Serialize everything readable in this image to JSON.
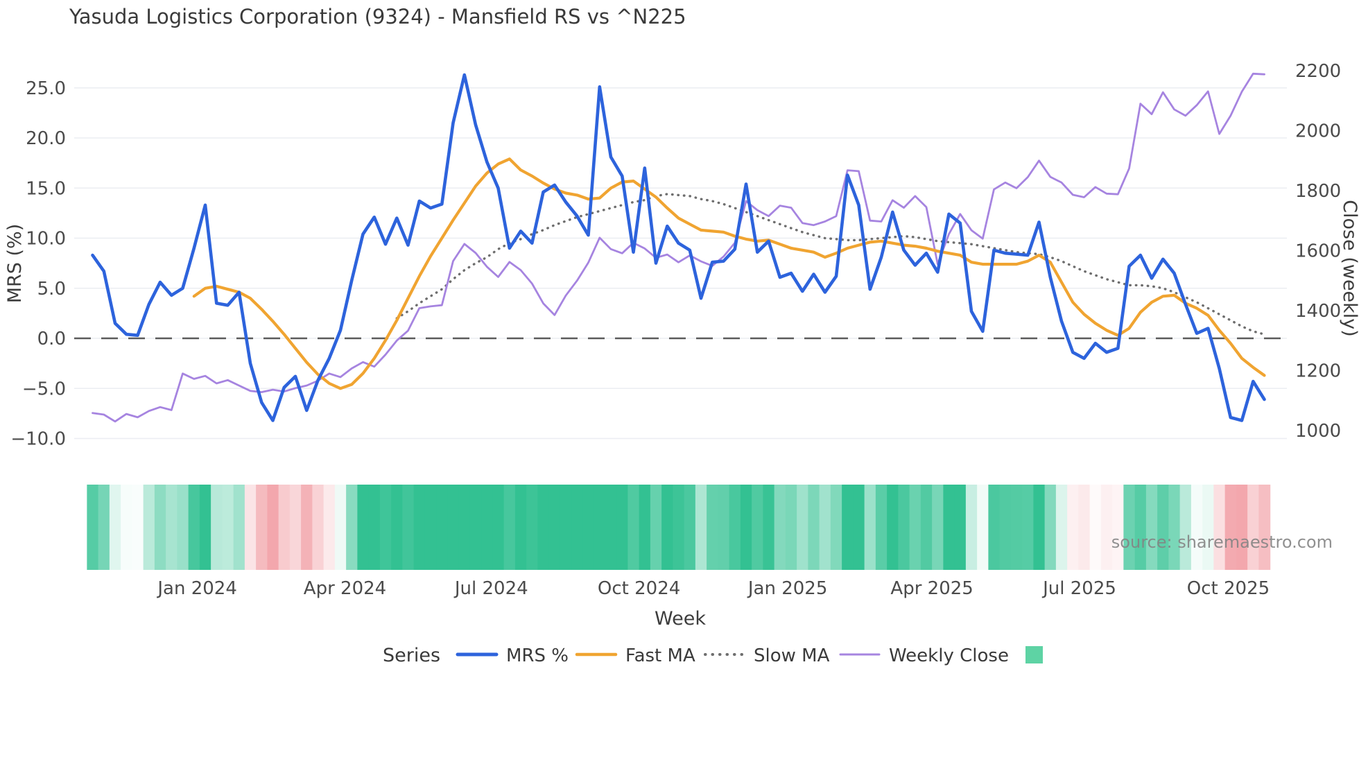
{
  "title": "Yasuda Logistics Corporation (9324) - Mansfield RS vs ^N225",
  "source": "source: sharemaestro.com",
  "axes": {
    "x": {
      "label": "Week",
      "ticks": [
        {
          "label": "Jan 2024",
          "week": 9.3
        },
        {
          "label": "Apr 2024",
          "week": 22.4
        },
        {
          "label": "Jul 2024",
          "week": 35.4
        },
        {
          "label": "Oct 2024",
          "week": 48.5
        },
        {
          "label": "Jan 2025",
          "week": 61.7
        },
        {
          "label": "Apr 2025",
          "week": 74.5
        },
        {
          "label": "Jul 2025",
          "week": 87.6
        },
        {
          "label": "Oct 2025",
          "week": 100.8
        }
      ]
    },
    "y_left": {
      "label": "MRS (%)",
      "ticks": [
        25,
        20,
        15,
        10,
        5,
        0,
        -5,
        -10
      ],
      "tick_labels": [
        "25.0",
        "20.0",
        "15.0",
        "10.0",
        "5.0",
        "0.0",
        "−5.0",
        "−10.0"
      ],
      "range": [
        -11.5,
        27.6
      ]
    },
    "y_right": {
      "label": "Close (weekly)",
      "ticks": [
        2200,
        2000,
        1800,
        1600,
        1400,
        1200,
        1000
      ],
      "tick_labels": [
        "2200",
        "2000",
        "1800",
        "1600",
        "1400",
        "1200",
        "1000"
      ],
      "range": [
        923,
        2230
      ]
    }
  },
  "legend": {
    "title": "Series",
    "items": [
      {
        "label": "MRS %",
        "color": "#2d63dc",
        "style": "solid",
        "weight": 5
      },
      {
        "label": "Fast MA",
        "color": "#f0a431",
        "style": "solid",
        "weight": 4.5
      },
      {
        "label": "Slow MA",
        "color": "#6e6e6e",
        "style": "dotted",
        "weight": 4
      },
      {
        "label": "Weekly Close",
        "color": "#a684e0",
        "style": "solid",
        "weight": 3
      }
    ],
    "heat_swatch_color": "#5ed3a4"
  },
  "chart_data": {
    "type": "line",
    "title": "Yasuda Logistics Corporation (9324) - Mansfield RS vs ^N225",
    "xlabel": "Week",
    "ylabel_left": "MRS (%)",
    "ylabel_right": "Close (weekly)",
    "x_unit": "week_index_from_2023-10-30",
    "x": "0..104 weekly",
    "grid": "horizontal_left_axis",
    "zero_line_left_axis": 0,
    "series": [
      {
        "name": "MRS %",
        "axis": "left",
        "color": "#2d63dc",
        "style": "solid",
        "width": 4.6,
        "values": [
          8.3,
          6.7,
          1.5,
          0.4,
          0.3,
          3.4,
          5.6,
          4.3,
          5.0,
          9.0,
          13.3,
          3.5,
          3.3,
          4.6,
          -2.5,
          -6.4,
          -8.2,
          -4.9,
          -3.8,
          -7.2,
          -4.2,
          -2.0,
          0.8,
          5.8,
          10.4,
          12.1,
          9.4,
          12.0,
          9.3,
          13.7,
          13.0,
          13.4,
          21.5,
          26.3,
          21.3,
          17.6,
          15.0,
          9.0,
          10.7,
          9.5,
          14.6,
          15.3,
          13.6,
          12.2,
          10.3,
          25.1,
          18.1,
          16.2,
          8.6,
          17.0,
          7.5,
          11.2,
          9.5,
          8.8,
          4.0,
          7.6,
          7.7,
          8.9,
          15.4,
          8.6,
          9.7,
          6.1,
          6.5,
          4.7,
          6.4,
          4.6,
          6.2,
          16.3,
          13.3,
          4.9,
          8.1,
          12.6,
          8.8,
          7.3,
          8.5,
          6.6,
          12.4,
          11.5,
          2.7,
          0.7,
          8.8,
          8.5,
          8.4,
          8.3,
          11.6,
          6.1,
          1.7,
          -1.4,
          -2.0,
          -0.5,
          -1.4,
          -1.0,
          7.2,
          8.3,
          6.0,
          7.9,
          6.5,
          3.4,
          0.5,
          1.0,
          -3.0,
          -7.9,
          -8.2,
          -4.3,
          -6.1
        ]
      },
      {
        "name": "Fast MA",
        "axis": "left",
        "color": "#f0a431",
        "style": "solid",
        "width": 4.2,
        "values": [
          null,
          null,
          null,
          null,
          null,
          null,
          null,
          null,
          null,
          4.2,
          5.0,
          5.2,
          4.9,
          4.6,
          4.0,
          2.9,
          1.7,
          0.4,
          -1.0,
          -2.4,
          -3.6,
          -4.5,
          -5.0,
          -4.6,
          -3.5,
          -2.0,
          -0.2,
          1.8,
          4.0,
          6.2,
          8.2,
          10.0,
          11.8,
          13.5,
          15.2,
          16.5,
          17.4,
          17.9,
          16.8,
          16.2,
          15.5,
          14.9,
          14.5,
          14.3,
          13.9,
          14.0,
          15.0,
          15.6,
          15.7,
          14.9,
          14.1,
          13.0,
          12.0,
          11.4,
          10.8,
          10.7,
          10.6,
          10.2,
          9.9,
          9.7,
          9.8,
          9.4,
          9.0,
          8.8,
          8.6,
          8.1,
          8.5,
          9.0,
          9.3,
          9.6,
          9.7,
          9.5,
          9.3,
          9.2,
          9.0,
          8.7,
          8.5,
          8.3,
          7.6,
          7.4,
          7.4,
          7.4,
          7.4,
          7.7,
          8.3,
          7.6,
          5.6,
          3.6,
          2.4,
          1.5,
          0.8,
          0.3,
          1.0,
          2.6,
          3.6,
          4.2,
          4.3,
          3.5,
          3.0,
          2.3,
          0.8,
          -0.5,
          -2.0,
          -2.9,
          -3.7
        ]
      },
      {
        "name": "Slow MA",
        "axis": "left",
        "color": "#6e6e6e",
        "style": "dotted",
        "width": 3.4,
        "values": [
          null,
          null,
          null,
          null,
          null,
          null,
          null,
          null,
          null,
          null,
          null,
          null,
          null,
          null,
          null,
          null,
          null,
          null,
          null,
          null,
          null,
          null,
          null,
          null,
          null,
          null,
          null,
          2.0,
          2.7,
          3.5,
          4.2,
          4.9,
          5.9,
          6.8,
          7.5,
          8.1,
          8.9,
          9.5,
          9.9,
          10.4,
          10.8,
          11.3,
          11.7,
          12.1,
          12.4,
          12.7,
          13.0,
          13.3,
          13.6,
          13.8,
          14.2,
          14.4,
          14.3,
          14.2,
          13.9,
          13.7,
          13.4,
          13.0,
          12.6,
          12.2,
          11.8,
          11.4,
          11.0,
          10.6,
          10.3,
          10.0,
          9.9,
          9.8,
          9.8,
          9.9,
          10.0,
          10.1,
          10.2,
          10.1,
          9.9,
          9.7,
          9.6,
          9.5,
          9.4,
          9.2,
          9.0,
          8.8,
          8.6,
          8.5,
          8.4,
          8.1,
          7.7,
          7.2,
          6.7,
          6.3,
          5.9,
          5.6,
          5.3,
          5.3,
          5.2,
          5.0,
          4.6,
          4.1,
          3.6,
          3.0,
          2.4,
          1.8,
          1.2,
          0.7,
          0.4
        ]
      },
      {
        "name": "Weekly Close",
        "axis": "right",
        "color": "#a684e0",
        "style": "solid",
        "width": 2.8,
        "values": [
          1058,
          1053,
          1030,
          1055,
          1044,
          1065,
          1078,
          1068,
          1190,
          1172,
          1182,
          1157,
          1168,
          1150,
          1132,
          1128,
          1136,
          1130,
          1141,
          1150,
          1166,
          1190,
          1178,
          1207,
          1228,
          1213,
          1253,
          1300,
          1333,
          1408,
          1414,
          1418,
          1565,
          1622,
          1592,
          1546,
          1512,
          1562,
          1535,
          1490,
          1424,
          1385,
          1450,
          1500,
          1560,
          1643,
          1605,
          1591,
          1626,
          1607,
          1576,
          1587,
          1561,
          1584,
          1564,
          1549,
          1580,
          1626,
          1765,
          1735,
          1715,
          1750,
          1743,
          1692,
          1685,
          1697,
          1715,
          1868,
          1865,
          1700,
          1697,
          1768,
          1743,
          1782,
          1745,
          1555,
          1655,
          1722,
          1668,
          1640,
          1804,
          1827,
          1808,
          1845,
          1900,
          1846,
          1827,
          1786,
          1778,
          1812,
          1790,
          1788,
          1874,
          2090,
          2055,
          2128,
          2071,
          2050,
          2085,
          2131,
          1989,
          2050,
          2130,
          2190,
          2188
        ]
      }
    ],
    "heatmap": {
      "description": "weekly color strip below plot: green = positive MRS, red = negative MRS, intensity ~ |MRS|",
      "green_max": "#33c192",
      "red_max": "#f0949b",
      "values": [
        8.3,
        6.7,
        1.5,
        0.4,
        0.3,
        3.4,
        5.6,
        4.3,
        5.0,
        9.0,
        13.3,
        3.5,
        3.3,
        4.6,
        -2.5,
        -6.4,
        -8.2,
        -4.9,
        -3.8,
        -7.2,
        -4.2,
        -2.0,
        0.8,
        5.8,
        10.4,
        12.1,
        9.4,
        12.0,
        9.3,
        13.7,
        13.0,
        13.4,
        21.5,
        26.3,
        21.3,
        17.6,
        15.0,
        9.0,
        10.7,
        9.5,
        14.6,
        15.3,
        13.6,
        12.2,
        10.3,
        25.1,
        18.1,
        16.2,
        8.6,
        17.0,
        7.5,
        11.2,
        9.5,
        8.8,
        4.0,
        7.6,
        7.7,
        8.9,
        15.4,
        8.6,
        9.7,
        6.1,
        6.5,
        4.7,
        6.4,
        4.6,
        6.2,
        16.3,
        13.3,
        4.9,
        8.1,
        12.6,
        8.8,
        7.3,
        8.5,
        6.6,
        12.4,
        11.5,
        2.7,
        0.7,
        8.8,
        8.5,
        8.4,
        8.3,
        11.6,
        6.1,
        1.7,
        -1.4,
        -2.0,
        -0.5,
        -1.4,
        -1.0,
        7.2,
        8.3,
        6.0,
        7.9,
        6.5,
        3.4,
        0.5,
        1.0,
        -3.0,
        -7.9,
        -8.2,
        -4.3,
        -6.1
      ]
    }
  }
}
